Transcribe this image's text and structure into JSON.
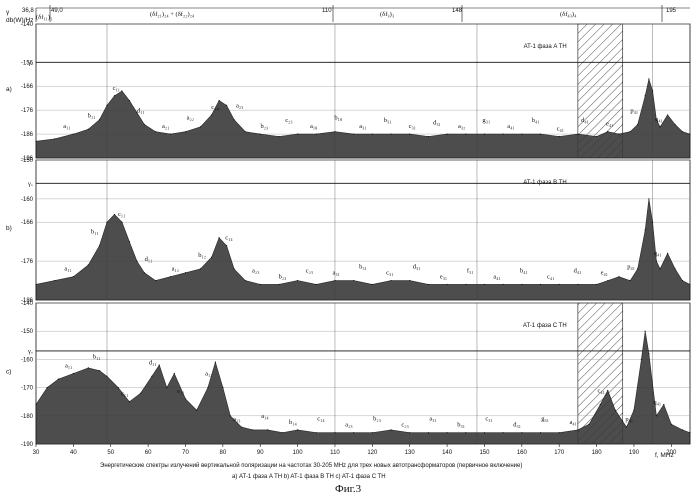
{
  "figure_label": "Фиг.3",
  "caption": "Энергетические спектры излучений вертикальной поляризации на частотах 30-205 MHz для трех новых автотрансформаторов (первичное включение)",
  "legend_line": "а) AT-1 фаза A TH   b) AT-1 фаза B TH   c) AT-1 фаза C TH",
  "y_unit_label": "db(W)/Hz",
  "y_symbol": "γ",
  "x_unit_label": "f, MHz",
  "top_band_ticks": [
    "36,8",
    "49,0",
    "110",
    "148",
    "195"
  ],
  "top_band_labels": [
    "(δf₁₁)₁",
    "(δf₂₁)₂₄ + (δf₂₂)₂₄",
    "(δf₃)₃",
    "(δf₄₃)₄"
  ],
  "chart_data": [
    {
      "type": "area",
      "panel": "a)",
      "title": "AT-1 фаза A TH",
      "xlim": [
        30,
        205
      ],
      "ylim": [
        -196,
        -140
      ],
      "yticks": [
        -140,
        -156,
        -166,
        -176,
        -186,
        -196
      ],
      "xticks": [
        30,
        40,
        50,
        60,
        70,
        80,
        90,
        100,
        110,
        120,
        130,
        140,
        150,
        160,
        170,
        180,
        190,
        200
      ],
      "threshold_label": "γₒ",
      "threshold": -156,
      "hatched_band": [
        175,
        187
      ],
      "x": [
        30,
        35,
        40,
        44,
        47,
        49,
        51,
        53,
        55,
        57,
        59,
        62,
        66,
        70,
        74,
        77,
        79,
        81,
        83,
        86,
        90,
        95,
        100,
        105,
        110,
        115,
        120,
        125,
        130,
        135,
        140,
        145,
        150,
        155,
        160,
        165,
        170,
        175,
        180,
        183,
        186,
        189,
        191,
        193,
        194,
        195,
        196,
        197,
        199,
        201,
        203,
        205
      ],
      "values": [
        -189,
        -188,
        -186,
        -184,
        -180,
        -174,
        -170,
        -168,
        -172,
        -177,
        -182,
        -185,
        -186,
        -185,
        -183,
        -178,
        -172,
        -174,
        -180,
        -185,
        -186,
        -187,
        -186,
        -186,
        -185,
        -186,
        -186,
        -186,
        -186,
        -187,
        -186,
        -186,
        -186,
        -186,
        -186,
        -186,
        -187,
        -186,
        -187,
        -185,
        -186,
        -185,
        -182,
        -170,
        -163,
        -168,
        -180,
        -183,
        -178,
        -182,
        -185,
        -186
      ],
      "peak_labels": [
        "a₁₁",
        "b₁₁",
        "c₁₁",
        "d₁₁",
        "a₂₁",
        "a₂₂",
        "c₁₄",
        "a₂₃",
        "b₂₃",
        "c₂₃",
        "a₁₈",
        "b₁₈",
        "a₃₁",
        "b₃₁",
        "c₃₁",
        "d₃₁",
        "a₃₂",
        "g₃₁",
        "a₄₁",
        "b₄₁",
        "c₄₁",
        "d₄₁",
        "e₄₁",
        "p₄₁",
        "q₄₁"
      ]
    },
    {
      "type": "area",
      "panel": "b)",
      "title": "AT-1 фаза B TH",
      "xlim": [
        30,
        205
      ],
      "ylim": [
        -186,
        -150
      ],
      "yticks": [
        -150,
        -160,
        -166,
        -176,
        -186
      ],
      "threshold_label": "γₒ",
      "threshold": -156,
      "x": [
        30,
        35,
        40,
        44,
        47,
        49,
        51,
        53,
        55,
        57,
        59,
        62,
        66,
        70,
        74,
        77,
        79,
        81,
        83,
        86,
        90,
        95,
        100,
        105,
        110,
        115,
        120,
        125,
        130,
        135,
        140,
        145,
        150,
        155,
        160,
        165,
        170,
        175,
        180,
        183,
        186,
        189,
        191,
        193,
        194,
        195,
        196,
        197,
        199,
        201,
        203,
        205
      ],
      "values": [
        -182,
        -181,
        -180,
        -177,
        -172,
        -166,
        -164,
        -166,
        -171,
        -176,
        -179,
        -181,
        -180,
        -179,
        -178,
        -175,
        -170,
        -172,
        -178,
        -181,
        -182,
        -182,
        -181,
        -182,
        -181,
        -181,
        -182,
        -181,
        -181,
        -182,
        -182,
        -182,
        -182,
        -182,
        -182,
        -182,
        -182,
        -182,
        -182,
        -181,
        -180,
        -181,
        -178,
        -168,
        -160,
        -166,
        -176,
        -178,
        -174,
        -178,
        -181,
        -182
      ],
      "peak_labels": [
        "a₁₁",
        "b₁₁",
        "c₁₁",
        "d₁₁",
        "a₁₂",
        "b₁₂",
        "c₁₄",
        "a₂₃",
        "b₂₃",
        "c₂₃",
        "a₃₁",
        "b₃₁",
        "c₃₁",
        "d₃₁",
        "e₃₁",
        "f₃₁",
        "a₄₁",
        "b₄₁",
        "c₄₁",
        "d₄₁",
        "e₄₁",
        "p₄₁",
        "q₄₁"
      ]
    },
    {
      "type": "area",
      "panel": "c)",
      "title": "AT-1 фаза C TH",
      "xlim": [
        30,
        205
      ],
      "ylim": [
        -190,
        -140
      ],
      "yticks": [
        -140,
        -150,
        -160,
        -170,
        -180,
        -190
      ],
      "threshold_label": "γₒ",
      "threshold": -157,
      "hatched_band": [
        175,
        187
      ],
      "x": [
        30,
        33,
        36,
        40,
        44,
        47,
        49,
        52,
        55,
        58,
        61,
        63,
        65,
        67,
        70,
        73,
        76,
        78,
        80,
        82,
        85,
        88,
        92,
        96,
        100,
        105,
        110,
        115,
        120,
        125,
        130,
        135,
        140,
        145,
        150,
        155,
        160,
        165,
        170,
        175,
        178,
        181,
        183,
        185,
        188,
        190,
        192,
        193,
        194,
        196,
        198,
        200,
        203,
        205
      ],
      "values": [
        -176,
        -170,
        -167,
        -165,
        -163,
        -164,
        -166,
        -170,
        -175,
        -172,
        -166,
        -162,
        -170,
        -165,
        -174,
        -178,
        -170,
        -161,
        -170,
        -180,
        -184,
        -185,
        -185,
        -186,
        -185,
        -186,
        -186,
        -186,
        -186,
        -185,
        -186,
        -186,
        -186,
        -186,
        -186,
        -186,
        -186,
        -186,
        -186,
        -185,
        -183,
        -176,
        -171,
        -178,
        -184,
        -178,
        -160,
        -150,
        -158,
        -180,
        -176,
        -183,
        -185,
        -186
      ],
      "peak_labels": [
        "a₁₁",
        "b₁₁",
        "c₁₁",
        "d₁₁",
        "e₁₁",
        "a₁₂",
        "a₁₃",
        "a₁₄",
        "b₁₄",
        "c₁₄",
        "a₂₃",
        "b₂₃",
        "c₂₃",
        "a₃₁",
        "b₃₁",
        "c₃₁",
        "d₃₁",
        "g₃₁",
        "a₄₁",
        "c₄₁",
        "p₄₁",
        "q₄₁"
      ]
    }
  ]
}
